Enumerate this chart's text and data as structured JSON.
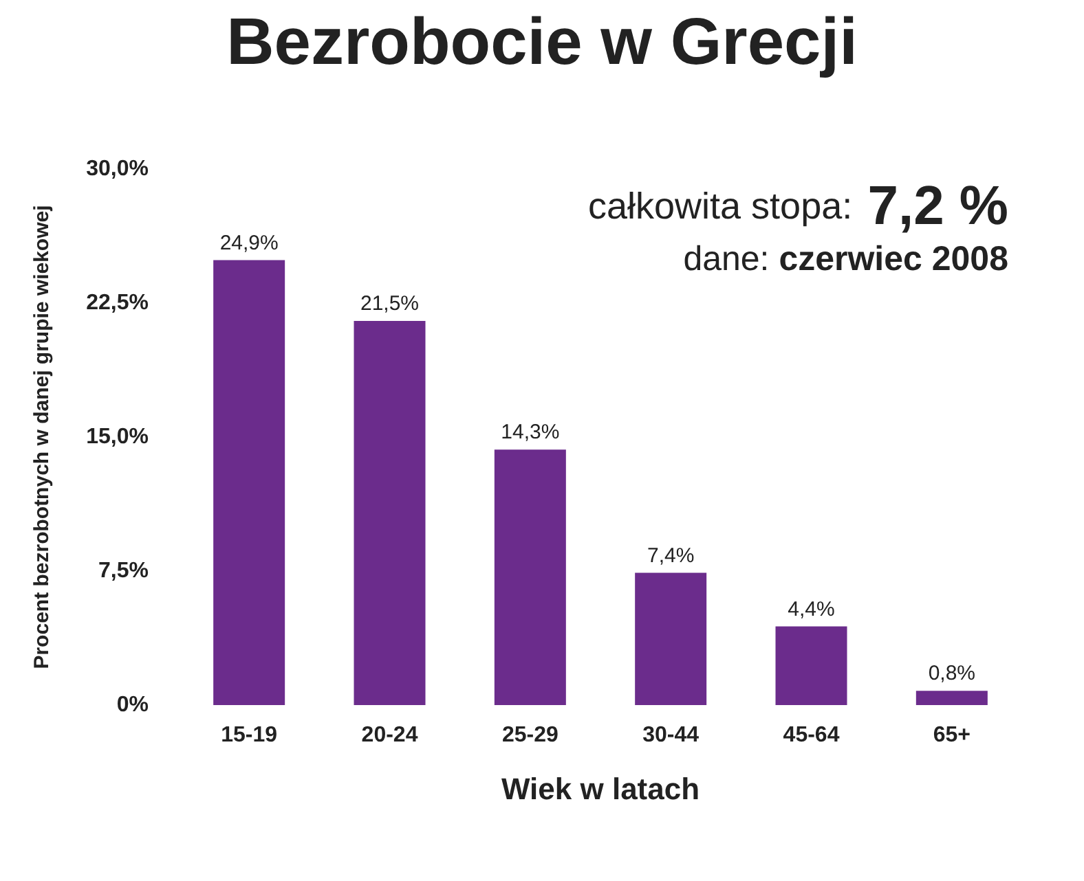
{
  "chart_data": {
    "type": "bar",
    "title": "Bezrobocie w Grecji",
    "xlabel": "Wiek w latach",
    "ylabel": "Procent bezrobotnych w danej grupie wiekowej",
    "categories": [
      "15-19",
      "20-24",
      "25-29",
      "30-44",
      "45-64",
      "65+"
    ],
    "values": [
      24.9,
      21.5,
      14.3,
      7.4,
      4.4,
      0.8
    ],
    "value_labels": [
      "24,9%",
      "21,5%",
      "14,3%",
      "7,4%",
      "4,4%",
      "0,8%"
    ],
    "color": "#6b2c8c",
    "ylim": [
      0,
      30
    ],
    "yticks": [
      {
        "value": 0,
        "label": "0%"
      },
      {
        "value": 7.5,
        "label": "7,5%"
      },
      {
        "value": 15,
        "label": "15,0%"
      },
      {
        "value": 22.5,
        "label": "22,5%"
      },
      {
        "value": 30,
        "label": "30,0%"
      }
    ],
    "annotations": [
      "całkowita stopa: 7,2 %",
      "dane: czerwiec 2008"
    ],
    "grid": false
  }
}
